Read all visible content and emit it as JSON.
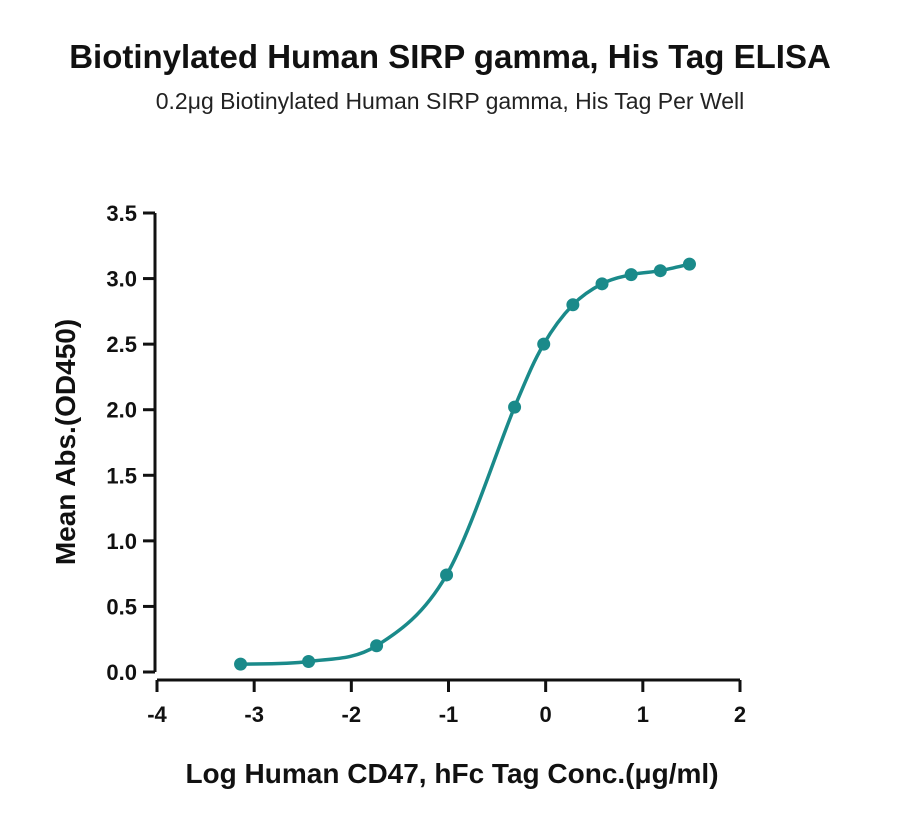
{
  "chart_data": {
    "type": "line",
    "title": "Biotinylated Human SIRP gamma, His Tag ELISA",
    "subtitle": "0.2μg Biotinylated Human SIRP gamma, His Tag Per Well",
    "xlabel": "Log Human CD47, hFc Tag Conc.(μg/ml)",
    "ylabel": "Mean Abs.(OD450)",
    "xlim": [
      -4,
      2
    ],
    "ylim": [
      0,
      3.5
    ],
    "x_ticks": [
      "-4",
      "-3",
      "-2",
      "-1",
      "0",
      "1",
      "2"
    ],
    "y_ticks": [
      "0.0",
      "0.5",
      "1.0",
      "1.5",
      "2.0",
      "2.5",
      "3.0",
      "3.5"
    ],
    "grid": false,
    "color": "#1a8a8a",
    "series": [
      {
        "points": [
          {
            "x": -3.14,
            "y": 0.06
          },
          {
            "x": -2.44,
            "y": 0.08
          },
          {
            "x": -1.74,
            "y": 0.2
          },
          {
            "x": -1.02,
            "y": 0.74
          },
          {
            "x": -0.32,
            "y": 2.02
          },
          {
            "x": -0.02,
            "y": 2.5
          },
          {
            "x": 0.28,
            "y": 2.8
          },
          {
            "x": 0.58,
            "y": 2.96
          },
          {
            "x": 0.88,
            "y": 3.03
          },
          {
            "x": 1.18,
            "y": 3.06
          },
          {
            "x": 1.48,
            "y": 3.11
          }
        ]
      }
    ]
  }
}
